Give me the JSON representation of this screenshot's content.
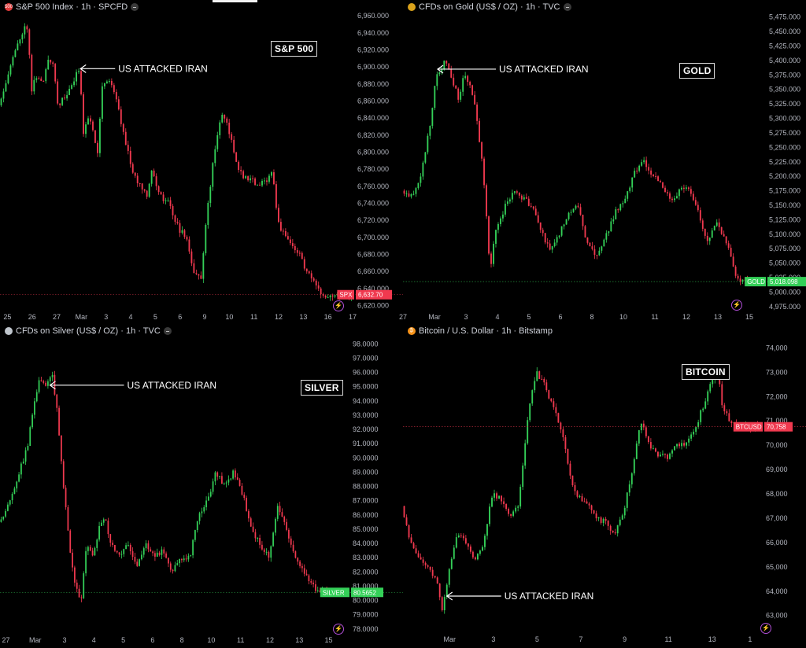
{
  "colors": {
    "up": "#34d058",
    "down": "#f0394f",
    "bg": "#000000",
    "axis": "#b2b5be"
  },
  "chart_data": [
    {
      "id": "spx",
      "type": "candlestick",
      "header": "S&P 500 Index · 1h · SPCFD",
      "symbol_badge": "500",
      "box_label": "S&P 500",
      "annotation": "US ATTACKED IRAN",
      "annotation_x": 2.9,
      "annotation_y": 6898,
      "price_tag": {
        "label": "SPX",
        "value": "6,632.70",
        "color": "#f0394f"
      },
      "last_price": 6632.7,
      "yticks": [
        6960,
        6940,
        6920,
        6900,
        6880,
        6860,
        6840,
        6820,
        6800,
        6780,
        6760,
        6740,
        6720,
        6700,
        6680,
        6660,
        6640,
        6620
      ],
      "ytick_labels": [
        "6,960.000",
        "6,940.000",
        "6,920.000",
        "6,900.000",
        "6,880.000",
        "6,860.000",
        "6,840.000",
        "6,820.000",
        "6,800.000",
        "6,780.000",
        "6,760.000",
        "6,740.000",
        "6,720.000",
        "6,700.000",
        "6,680.000",
        "6,660.000",
        "6,640.000",
        "6,620.000"
      ],
      "ylim": [
        6614,
        6962
      ],
      "xticks": [
        {
          "x": 0,
          "label": "25"
        },
        {
          "x": 1,
          "label": "26"
        },
        {
          "x": 2,
          "label": "27"
        },
        {
          "x": 3,
          "label": "Mar"
        },
        {
          "x": 4,
          "label": "3"
        },
        {
          "x": 5,
          "label": "4"
        },
        {
          "x": 6,
          "label": "5"
        },
        {
          "x": 7,
          "label": "6"
        },
        {
          "x": 8,
          "label": "9"
        },
        {
          "x": 9,
          "label": "10"
        },
        {
          "x": 10,
          "label": "11"
        },
        {
          "x": 11,
          "label": "12"
        },
        {
          "x": 12,
          "label": "13"
        },
        {
          "x": 13,
          "label": "16"
        },
        {
          "x": 14,
          "label": "17"
        }
      ],
      "xlim": [
        -0.3,
        14
      ],
      "path": [
        [
          -0.3,
          6855
        ],
        [
          0.2,
          6905
        ],
        [
          0.7,
          6945
        ],
        [
          0.9,
          6948
        ],
        [
          1.0,
          6870
        ],
        [
          1.2,
          6890
        ],
        [
          1.5,
          6880
        ],
        [
          1.7,
          6910
        ],
        [
          1.9,
          6905
        ],
        [
          2.1,
          6855
        ],
        [
          2.4,
          6865
        ],
        [
          2.7,
          6880
        ],
        [
          2.9,
          6895
        ],
        [
          3.0,
          6900
        ],
        [
          3.1,
          6820
        ],
        [
          3.3,
          6840
        ],
        [
          3.5,
          6830
        ],
        [
          3.7,
          6800
        ],
        [
          3.9,
          6880
        ],
        [
          4.2,
          6885
        ],
        [
          4.4,
          6870
        ],
        [
          4.7,
          6830
        ],
        [
          4.9,
          6805
        ],
        [
          5.2,
          6770
        ],
        [
          5.5,
          6760
        ],
        [
          5.7,
          6750
        ],
        [
          5.9,
          6780
        ],
        [
          6.2,
          6750
        ],
        [
          6.6,
          6740
        ],
        [
          7.0,
          6710
        ],
        [
          7.3,
          6700
        ],
        [
          7.6,
          6660
        ],
        [
          7.9,
          6650
        ],
        [
          8.1,
          6720
        ],
        [
          8.4,
          6790
        ],
        [
          8.7,
          6845
        ],
        [
          9.0,
          6830
        ],
        [
          9.3,
          6790
        ],
        [
          9.6,
          6770
        ],
        [
          9.9,
          6770
        ],
        [
          10.2,
          6760
        ],
        [
          10.5,
          6765
        ],
        [
          10.8,
          6780
        ],
        [
          11.0,
          6720
        ],
        [
          11.3,
          6700
        ],
        [
          11.6,
          6690
        ],
        [
          11.9,
          6680
        ],
        [
          12.1,
          6665
        ],
        [
          12.4,
          6650
        ],
        [
          12.6,
          6640
        ],
        [
          12.8,
          6632.7
        ]
      ],
      "candles": 150,
      "seed": 11
    },
    {
      "id": "gold",
      "type": "candlestick",
      "header": "CFDs on Gold (US$ / OZ) · 1h · TVC",
      "symbol_badge": "",
      "box_label": "GOLD",
      "annotation": "US ATTACKED IRAN",
      "annotation_x": 1.05,
      "annotation_y": 5385,
      "price_tag": {
        "label": "GOLD",
        "value": "5,018.098",
        "color": "#34d058"
      },
      "last_price": 5018.098,
      "yticks": [
        5475,
        5450,
        5425,
        5400,
        5375,
        5350,
        5325,
        5300,
        5275,
        5250,
        5225,
        5200,
        5175,
        5150,
        5125,
        5100,
        5075,
        5050,
        5025,
        5000,
        4975
      ],
      "ytick_labels": [
        "5,475.000",
        "5,450.000",
        "5,425.000",
        "5,400.000",
        "5,375.000",
        "5,350.000",
        "5,325.000",
        "5,300.000",
        "5,275.000",
        "5,250.000",
        "5,225.000",
        "5,200.000",
        "5,175.000",
        "5,150.000",
        "5,125.000",
        "5,100.000",
        "5,075.000",
        "5,050.000",
        "5,025.000",
        "5,000.000",
        "4,975.000"
      ],
      "ylim": [
        4968,
        5480
      ],
      "xticks": [
        {
          "x": 0,
          "label": "27"
        },
        {
          "x": 1,
          "label": "Mar"
        },
        {
          "x": 2,
          "label": "3"
        },
        {
          "x": 3,
          "label": "4"
        },
        {
          "x": 4,
          "label": "5"
        },
        {
          "x": 5,
          "label": "6"
        },
        {
          "x": 6,
          "label": "8"
        },
        {
          "x": 7,
          "label": "10"
        },
        {
          "x": 8,
          "label": "11"
        },
        {
          "x": 9,
          "label": "12"
        },
        {
          "x": 10,
          "label": "13"
        },
        {
          "x": 11,
          "label": "15"
        }
      ],
      "xlim": [
        0,
        11.2
      ],
      "path": [
        [
          0,
          5175
        ],
        [
          0.3,
          5165
        ],
        [
          0.6,
          5200
        ],
        [
          0.9,
          5290
        ],
        [
          1.1,
          5375
        ],
        [
          1.4,
          5400
        ],
        [
          1.6,
          5370
        ],
        [
          1.8,
          5330
        ],
        [
          2.0,
          5380
        ],
        [
          2.3,
          5330
        ],
        [
          2.6,
          5200
        ],
        [
          2.8,
          5040
        ],
        [
          3.0,
          5110
        ],
        [
          3.3,
          5150
        ],
        [
          3.6,
          5175
        ],
        [
          3.9,
          5160
        ],
        [
          4.1,
          5150
        ],
        [
          4.4,
          5110
        ],
        [
          4.7,
          5070
        ],
        [
          5.0,
          5100
        ],
        [
          5.3,
          5140
        ],
        [
          5.6,
          5150
        ],
        [
          5.9,
          5080
        ],
        [
          6.2,
          5060
        ],
        [
          6.5,
          5100
        ],
        [
          6.8,
          5140
        ],
        [
          7.1,
          5160
        ],
        [
          7.4,
          5210
        ],
        [
          7.7,
          5225
        ],
        [
          8.0,
          5200
        ],
        [
          8.3,
          5180
        ],
        [
          8.6,
          5160
        ],
        [
          8.9,
          5180
        ],
        [
          9.1,
          5180
        ],
        [
          9.4,
          5140
        ],
        [
          9.7,
          5090
        ],
        [
          10.0,
          5120
        ],
        [
          10.3,
          5090
        ],
        [
          10.6,
          5030
        ],
        [
          10.8,
          5018.098
        ]
      ],
      "candles": 150,
      "seed": 23
    },
    {
      "id": "silver",
      "type": "candlestick",
      "header": "CFDs on Silver (US$ / OZ) · 1h · TVC",
      "symbol_badge": "",
      "box_label": "SILVER",
      "annotation": "US ATTACKED IRAN",
      "annotation_x": 1.45,
      "annotation_y": 95.1,
      "price_tag": {
        "label": "SILVER",
        "value": "80.5652",
        "color": "#34d058"
      },
      "last_price": 80.5652,
      "yticks": [
        98,
        97,
        96,
        95,
        94,
        93,
        92,
        91,
        90,
        89,
        88,
        87,
        86,
        85,
        84,
        83,
        82,
        81,
        80,
        79,
        78
      ],
      "ytick_labels": [
        "98.0000",
        "97.0000",
        "96.0000",
        "95.0000",
        "94.0000",
        "93.0000",
        "92.0000",
        "91.0000",
        "90.0000",
        "89.0000",
        "88.0000",
        "87.0000",
        "86.0000",
        "85.0000",
        "84.0000",
        "83.0000",
        "82.0000",
        "81.0000",
        "80.0000",
        "79.0000",
        "78.0000"
      ],
      "ylim": [
        77.6,
        98.4
      ],
      "xticks": [
        {
          "x": 0,
          "label": "27"
        },
        {
          "x": 1,
          "label": "Mar"
        },
        {
          "x": 2,
          "label": "3"
        },
        {
          "x": 3,
          "label": "4"
        },
        {
          "x": 4,
          "label": "5"
        },
        {
          "x": 5,
          "label": "6"
        },
        {
          "x": 6,
          "label": "8"
        },
        {
          "x": 7,
          "label": "10"
        },
        {
          "x": 8,
          "label": "11"
        },
        {
          "x": 9,
          "label": "12"
        },
        {
          "x": 10,
          "label": "13"
        },
        {
          "x": 11,
          "label": "15"
        }
      ],
      "xlim": [
        -0.2,
        11.2
      ],
      "path": [
        [
          -0.2,
          85.5
        ],
        [
          0.2,
          87
        ],
        [
          0.5,
          89
        ],
        [
          0.8,
          91
        ],
        [
          1.0,
          94
        ],
        [
          1.2,
          95.5
        ],
        [
          1.4,
          95.2
        ],
        [
          1.6,
          96
        ],
        [
          1.8,
          93
        ],
        [
          2.0,
          88
        ],
        [
          2.2,
          84
        ],
        [
          2.4,
          81
        ],
        [
          2.6,
          80
        ],
        [
          2.8,
          84
        ],
        [
          3.0,
          83
        ],
        [
          3.2,
          85
        ],
        [
          3.4,
          86
        ],
        [
          3.6,
          84
        ],
        [
          3.9,
          83
        ],
        [
          4.2,
          84
        ],
        [
          4.5,
          82.5
        ],
        [
          4.8,
          84
        ],
        [
          5.1,
          83
        ],
        [
          5.4,
          83.5
        ],
        [
          5.7,
          82
        ],
        [
          6.0,
          83
        ],
        [
          6.3,
          83
        ],
        [
          6.6,
          86
        ],
        [
          6.9,
          87
        ],
        [
          7.2,
          89
        ],
        [
          7.5,
          88
        ],
        [
          7.8,
          89
        ],
        [
          8.1,
          87.5
        ],
        [
          8.4,
          85
        ],
        [
          8.7,
          84
        ],
        [
          9.0,
          83
        ],
        [
          9.3,
          86.5
        ],
        [
          9.6,
          85
        ],
        [
          9.9,
          83
        ],
        [
          10.2,
          82
        ],
        [
          10.5,
          81
        ],
        [
          10.7,
          80.5652
        ]
      ],
      "candles": 150,
      "seed": 37
    },
    {
      "id": "btc",
      "type": "candlestick",
      "header": "Bitcoin / U.S. Dollar · 1h · Bitstamp",
      "symbol_badge": "₿",
      "box_label": "BITCOIN",
      "annotation": "US ATTACKED IRAN",
      "annotation_x": 0.85,
      "annotation_y": 63800,
      "price_tag": {
        "label": "BTCUSD",
        "value": "70,758",
        "color": "#f0394f"
      },
      "last_price": 70758,
      "yticks": [
        74000,
        73000,
        72000,
        71000,
        70000,
        69000,
        68000,
        67000,
        66000,
        65000,
        64000,
        63000
      ],
      "ytick_labels": [
        "74,000",
        "73,000",
        "72,000",
        "71,000",
        "70,000",
        "69,000",
        "68,000",
        "67,000",
        "66,000",
        "65,000",
        "64,000",
        "63,000"
      ],
      "ylim": [
        62700,
        74400
      ],
      "xticks": [
        {
          "x": 1,
          "label": "Mar"
        },
        {
          "x": 2.5,
          "label": "3"
        },
        {
          "x": 4,
          "label": "5"
        },
        {
          "x": 5.5,
          "label": "7"
        },
        {
          "x": 7,
          "label": "9"
        },
        {
          "x": 8.5,
          "label": "11"
        },
        {
          "x": 10,
          "label": "13"
        },
        {
          "x": 11.3,
          "label": "1"
        }
      ],
      "xlim": [
        -0.6,
        11.6
      ],
      "path": [
        [
          -0.6,
          67500
        ],
        [
          -0.3,
          66000
        ],
        [
          0,
          65400
        ],
        [
          0.3,
          65000
        ],
        [
          0.6,
          64500
        ],
        [
          0.8,
          63200
        ],
        [
          1.0,
          64800
        ],
        [
          1.3,
          66300
        ],
        [
          1.6,
          66000
        ],
        [
          1.9,
          65200
        ],
        [
          2.2,
          66000
        ],
        [
          2.5,
          68000
        ],
        [
          2.8,
          67800
        ],
        [
          3.1,
          67000
        ],
        [
          3.4,
          67500
        ],
        [
          3.7,
          71000
        ],
        [
          4.0,
          73000
        ],
        [
          4.3,
          72500
        ],
        [
          4.6,
          71500
        ],
        [
          4.9,
          70500
        ],
        [
          5.2,
          68500
        ],
        [
          5.5,
          67800
        ],
        [
          5.8,
          67500
        ],
        [
          6.1,
          67000
        ],
        [
          6.4,
          66800
        ],
        [
          6.7,
          66400
        ],
        [
          7.0,
          67200
        ],
        [
          7.3,
          69000
        ],
        [
          7.6,
          71000
        ],
        [
          7.9,
          70000
        ],
        [
          8.2,
          69600
        ],
        [
          8.5,
          69500
        ],
        [
          8.8,
          70000
        ],
        [
          9.1,
          70000
        ],
        [
          9.4,
          70500
        ],
        [
          9.7,
          71500
        ],
        [
          10.0,
          72500
        ],
        [
          10.2,
          73400
        ],
        [
          10.4,
          71500
        ],
        [
          10.7,
          70900
        ],
        [
          11.0,
          70758
        ]
      ],
      "candles": 150,
      "seed": 53
    }
  ]
}
